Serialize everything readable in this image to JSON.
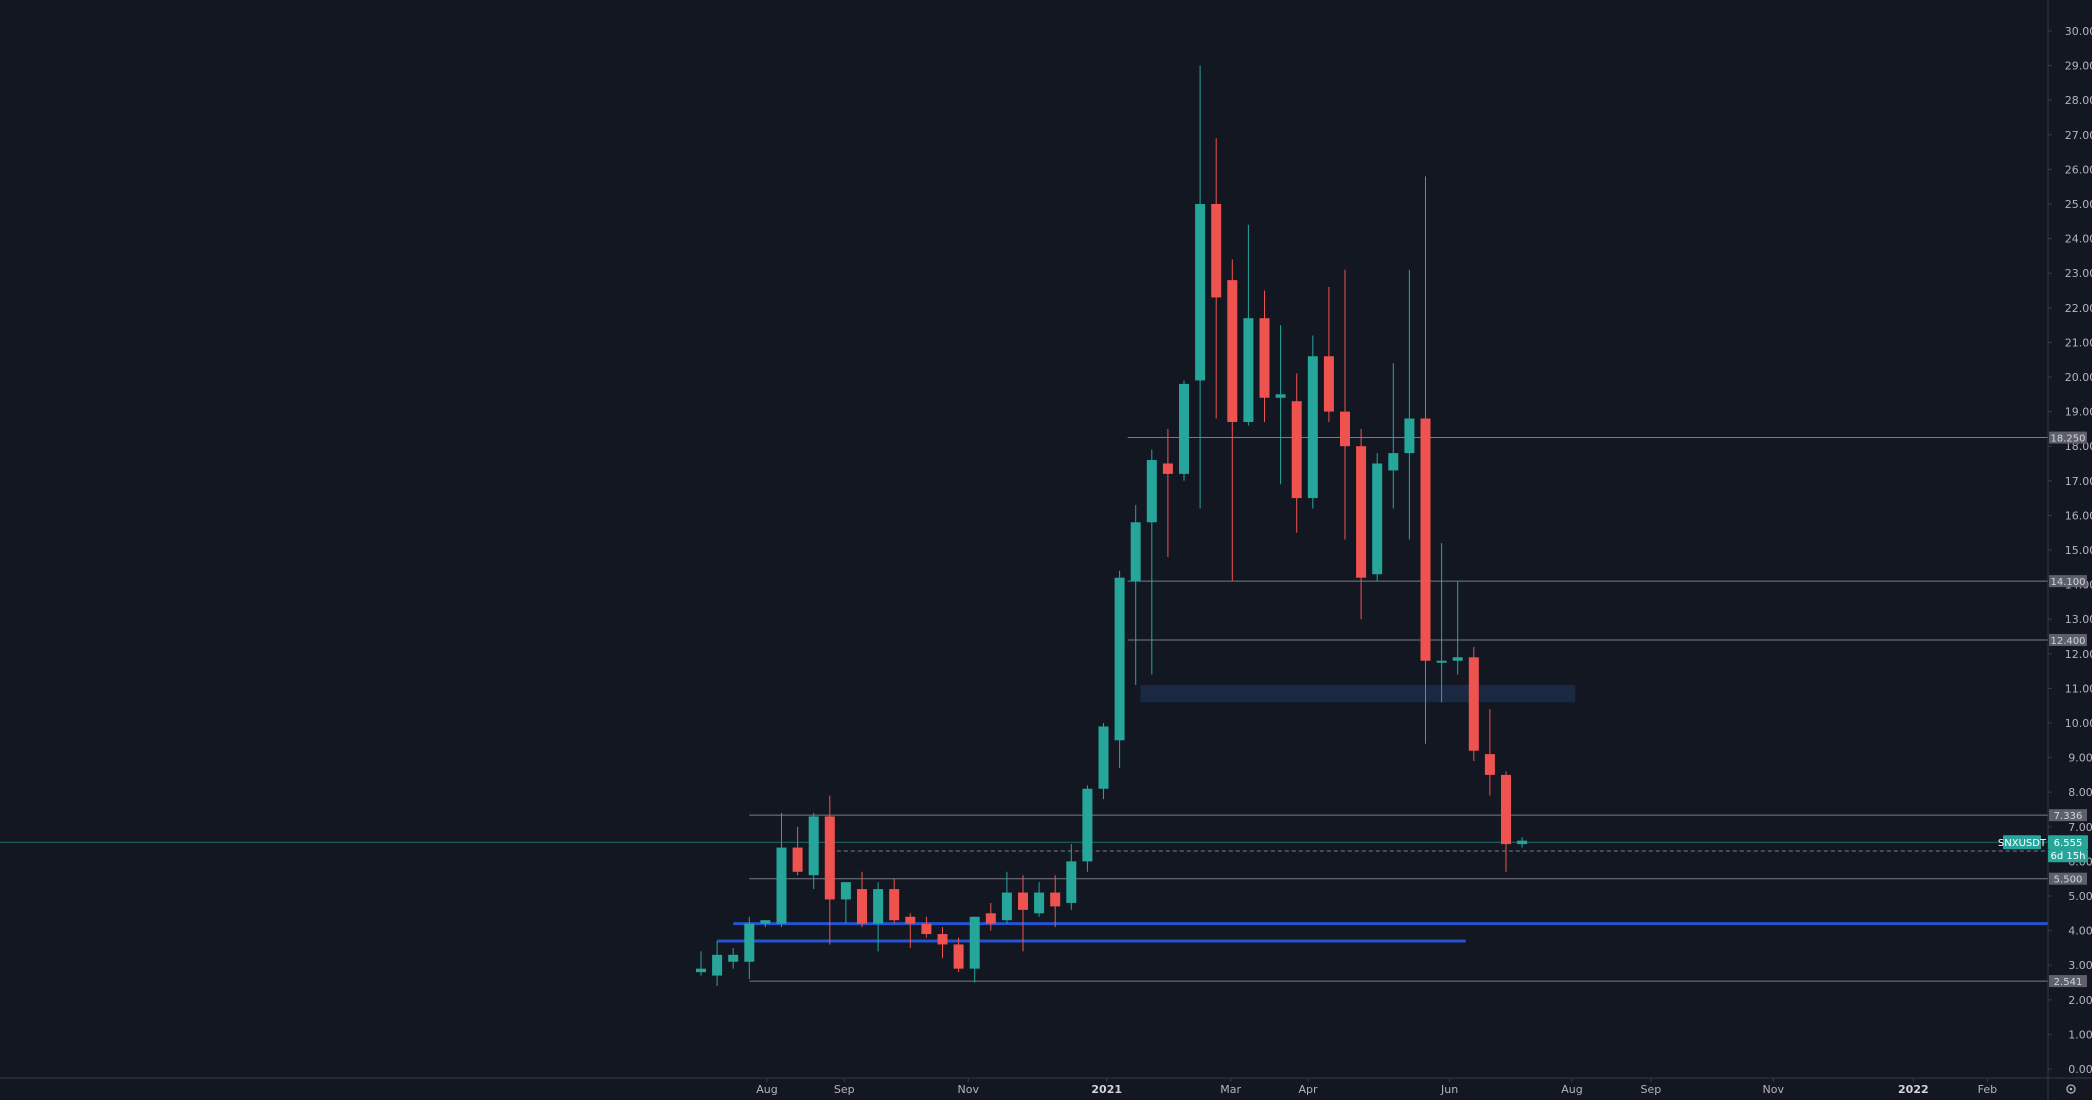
{
  "colors": {
    "background": "#131722",
    "bull": "#26a69a",
    "bear": "#ef5350",
    "axis_text": "#b2b5be",
    "axis_line": "#363a45",
    "level_line": "#787b86",
    "level_label_bg": "#5d606b",
    "support_blue": "#2962ff",
    "zone_fill": "#1c2b45"
  },
  "chart_data": {
    "type": "candlestick",
    "symbol": "SNXUSDT",
    "last_price": "6.555",
    "countdown": "6d 15h",
    "y_axis": {
      "min": 0,
      "max": 31,
      "ticks": [
        "0.000",
        "1.000",
        "2.000",
        "3.000",
        "4.000",
        "5.000",
        "6.000",
        "7.000",
        "8.000",
        "9.000",
        "10.000",
        "11.000",
        "12.000",
        "13.000",
        "14.000",
        "15.000",
        "16.000",
        "17.000",
        "18.000",
        "19.000",
        "20.000",
        "21.000",
        "22.000",
        "23.000",
        "24.000",
        "25.000",
        "26.000",
        "27.000",
        "28.000",
        "29.000",
        "30.000"
      ]
    },
    "x_axis": {
      "ticks": [
        {
          "label": "Aug",
          "bar": 4.1,
          "bold": false
        },
        {
          "label": "Sep",
          "bar": 8.9,
          "bold": false
        },
        {
          "label": "Nov",
          "bar": 16.6,
          "bold": false
        },
        {
          "label": "2021",
          "bar": 25.2,
          "bold": true
        },
        {
          "label": "Mar",
          "bar": 32.9,
          "bold": false
        },
        {
          "label": "Apr",
          "bar": 37.7,
          "bold": false
        },
        {
          "label": "Jun",
          "bar": 46.5,
          "bold": false
        },
        {
          "label": "Aug",
          "bar": 54.1,
          "bold": false
        },
        {
          "label": "Sep",
          "bar": 59.0,
          "bold": false
        },
        {
          "label": "Nov",
          "bar": 66.6,
          "bold": false
        },
        {
          "label": "2022",
          "bar": 75.3,
          "bold": true
        },
        {
          "label": "Feb",
          "bar": 79.9,
          "bold": false
        }
      ]
    },
    "candles": [
      {
        "o": 2.8,
        "h": 3.4,
        "l": 2.7,
        "c": 2.9
      },
      {
        "o": 2.7,
        "h": 3.7,
        "l": 2.4,
        "c": 3.3
      },
      {
        "o": 3.1,
        "h": 3.5,
        "l": 2.9,
        "c": 3.3
      },
      {
        "o": 3.1,
        "h": 4.4,
        "l": 2.6,
        "c": 4.2
      },
      {
        "o": 4.2,
        "h": 4.3,
        "l": 4.1,
        "c": 4.3
      },
      {
        "o": 4.2,
        "h": 7.4,
        "l": 4.1,
        "c": 6.4
      },
      {
        "o": 6.4,
        "h": 7.0,
        "l": 5.6,
        "c": 5.7
      },
      {
        "o": 5.6,
        "h": 7.4,
        "l": 5.2,
        "c": 7.3
      },
      {
        "o": 7.3,
        "h": 7.9,
        "l": 3.6,
        "c": 4.9
      },
      {
        "o": 4.9,
        "h": 5.4,
        "l": 4.2,
        "c": 5.4
      },
      {
        "o": 5.2,
        "h": 5.7,
        "l": 4.1,
        "c": 4.2
      },
      {
        "o": 4.2,
        "h": 5.4,
        "l": 3.4,
        "c": 5.2
      },
      {
        "o": 5.2,
        "h": 5.5,
        "l": 4.2,
        "c": 4.3
      },
      {
        "o": 4.4,
        "h": 4.5,
        "l": 3.5,
        "c": 4.2
      },
      {
        "o": 4.2,
        "h": 4.4,
        "l": 3.8,
        "c": 3.9
      },
      {
        "o": 3.9,
        "h": 4.1,
        "l": 3.2,
        "c": 3.6
      },
      {
        "o": 3.6,
        "h": 3.8,
        "l": 2.8,
        "c": 2.9
      },
      {
        "o": 2.9,
        "h": 4.4,
        "l": 2.5,
        "c": 4.4
      },
      {
        "o": 4.5,
        "h": 4.8,
        "l": 4.0,
        "c": 4.2
      },
      {
        "o": 4.3,
        "h": 5.7,
        "l": 4.2,
        "c": 5.1
      },
      {
        "o": 5.1,
        "h": 5.6,
        "l": 3.4,
        "c": 4.6
      },
      {
        "o": 4.5,
        "h": 5.4,
        "l": 4.4,
        "c": 5.1
      },
      {
        "o": 5.1,
        "h": 5.6,
        "l": 4.1,
        "c": 4.7
      },
      {
        "o": 4.8,
        "h": 6.5,
        "l": 4.6,
        "c": 6.0
      },
      {
        "o": 6.0,
        "h": 8.2,
        "l": 5.7,
        "c": 8.1
      },
      {
        "o": 8.1,
        "h": 10.0,
        "l": 7.8,
        "c": 9.9
      },
      {
        "o": 9.5,
        "h": 14.4,
        "l": 8.7,
        "c": 14.2
      },
      {
        "o": 14.1,
        "h": 16.3,
        "l": 11.1,
        "c": 15.8
      },
      {
        "o": 15.8,
        "h": 17.9,
        "l": 11.4,
        "c": 17.6
      },
      {
        "o": 17.5,
        "h": 18.5,
        "l": 14.8,
        "c": 17.2
      },
      {
        "o": 17.2,
        "h": 19.9,
        "l": 17.0,
        "c": 19.8
      },
      {
        "o": 19.9,
        "h": 29.0,
        "l": 16.2,
        "c": 25.0
      },
      {
        "o": 25.0,
        "h": 26.9,
        "l": 18.8,
        "c": 22.3
      },
      {
        "o": 22.8,
        "h": 23.4,
        "l": 14.1,
        "c": 18.7
      },
      {
        "o": 18.7,
        "h": 24.4,
        "l": 18.6,
        "c": 21.7
      },
      {
        "o": 21.7,
        "h": 22.5,
        "l": 18.7,
        "c": 19.4
      },
      {
        "o": 19.4,
        "h": 21.5,
        "l": 16.9,
        "c": 19.5
      },
      {
        "o": 19.3,
        "h": 20.1,
        "l": 15.5,
        "c": 16.5
      },
      {
        "o": 16.5,
        "h": 21.2,
        "l": 16.2,
        "c": 20.6
      },
      {
        "o": 20.6,
        "h": 22.6,
        "l": 18.7,
        "c": 19.0
      },
      {
        "o": 19.0,
        "h": 23.1,
        "l": 15.3,
        "c": 18.0
      },
      {
        "o": 18.0,
        "h": 18.5,
        "l": 13.0,
        "c": 14.2
      },
      {
        "o": 14.3,
        "h": 17.8,
        "l": 14.1,
        "c": 17.5
      },
      {
        "o": 17.3,
        "h": 20.4,
        "l": 16.2,
        "c": 17.8
      },
      {
        "o": 17.8,
        "h": 23.1,
        "l": 15.3,
        "c": 18.8
      },
      {
        "o": 18.8,
        "h": 25.8,
        "l": 9.4,
        "c": 11.8
      },
      {
        "o": 11.8,
        "h": 15.2,
        "l": 10.6,
        "c": 11.8
      },
      {
        "o": 11.8,
        "h": 14.1,
        "l": 11.4,
        "c": 11.9
      },
      {
        "o": 11.9,
        "h": 12.2,
        "l": 8.9,
        "c": 9.2
      },
      {
        "o": 9.1,
        "h": 10.4,
        "l": 7.9,
        "c": 8.5
      },
      {
        "o": 8.5,
        "h": 8.6,
        "l": 5.7,
        "c": 6.5
      },
      {
        "o": 6.5,
        "h": 6.7,
        "l": 6.4,
        "c": 6.6
      }
    ],
    "levels": [
      {
        "value": 18.25,
        "label": "18.250"
      },
      {
        "value": 14.1,
        "label": "14.100"
      },
      {
        "value": 12.4,
        "label": "12.400"
      },
      {
        "value": 7.336,
        "label": "7.336"
      },
      {
        "value": 6.3,
        "label": "6.300"
      },
      {
        "value": 5.5,
        "label": "5.500"
      },
      {
        "value": 2.541,
        "label": "2.541"
      }
    ],
    "support_lines": [
      {
        "value": 4.2,
        "from_bar": 2,
        "to_bar": "edge"
      },
      {
        "value": 3.7,
        "from_bar": 1,
        "to_bar": 47.5
      }
    ],
    "zone": {
      "top": 11.1,
      "bottom": 10.6,
      "from_bar": 27.3,
      "to_bar": 54.3
    }
  }
}
